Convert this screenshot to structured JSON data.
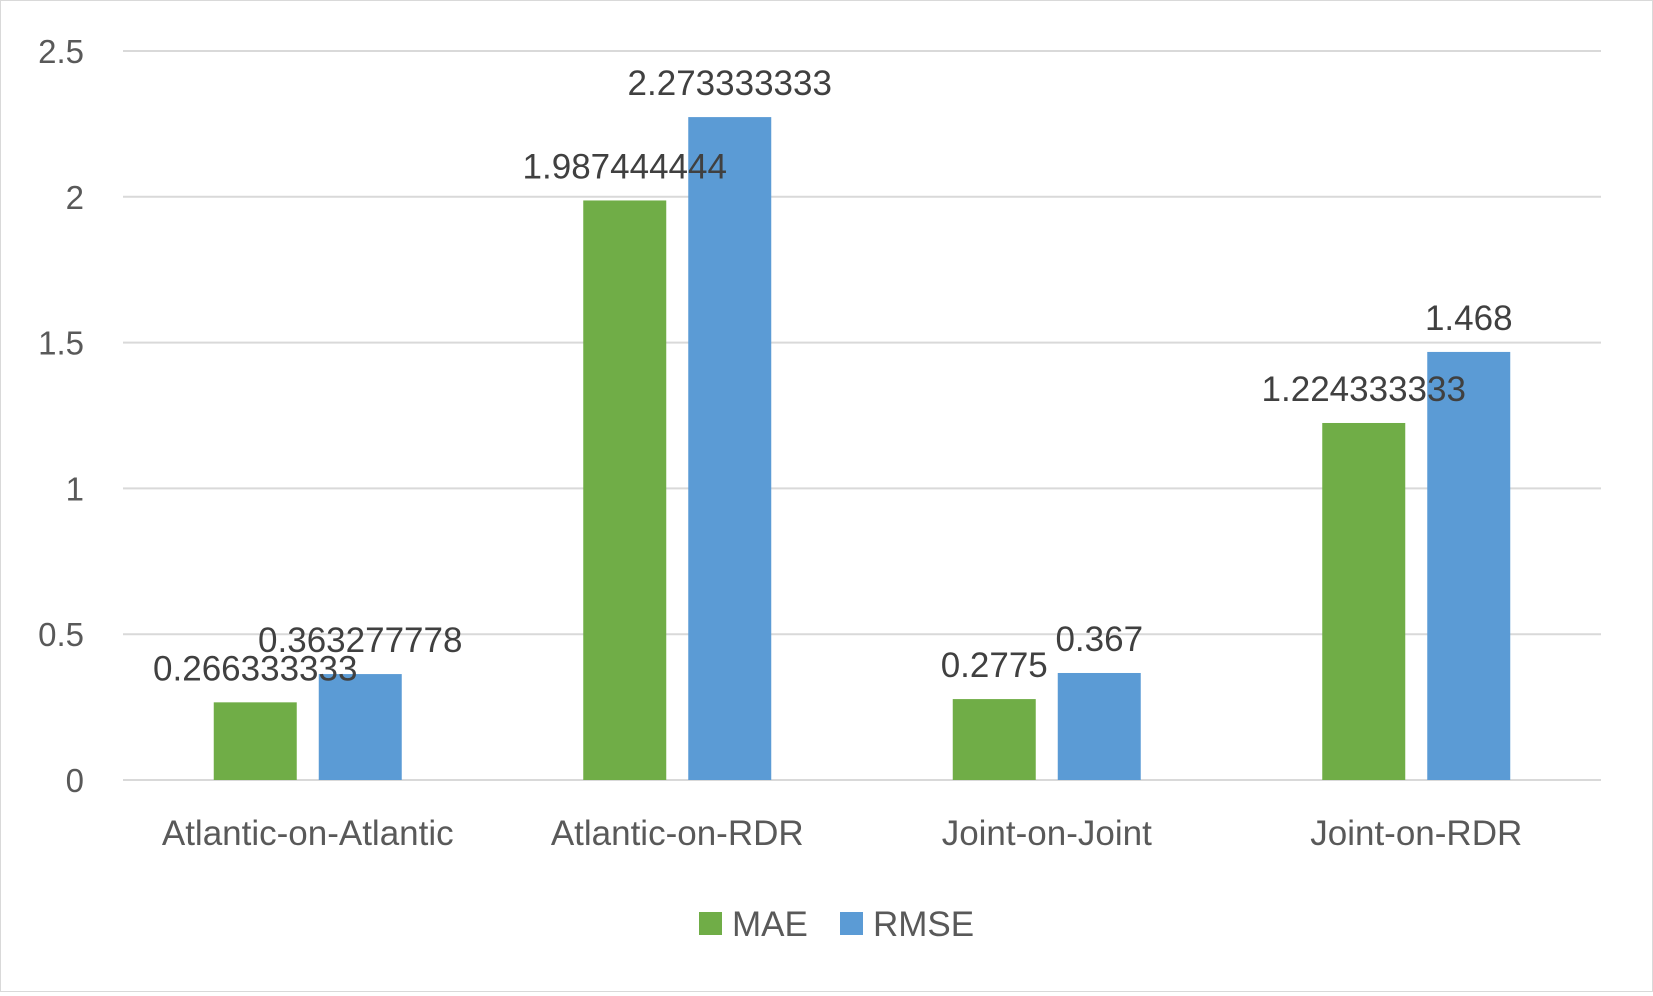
{
  "chart_data": {
    "type": "bar",
    "title": "",
    "xlabel": "",
    "ylabel": "",
    "categories": [
      "Atlantic-on-Atlantic",
      "Atlantic-on-RDR",
      "Joint-on-Joint",
      "Joint-on-RDR"
    ],
    "series": [
      {
        "name": "MAE",
        "color": "#70ad47",
        "values": [
          0.266333333,
          1.987444444,
          0.2775,
          1.224333333
        ],
        "labels": [
          "0.266333333",
          "1.987444444",
          "0.2775",
          "1.224333333"
        ]
      },
      {
        "name": "RMSE",
        "color": "#5b9bd5",
        "values": [
          0.363277778,
          2.273333333,
          0.367,
          1.468
        ],
        "labels": [
          "0.363277778",
          "2.273333333",
          "0.367",
          "1.468"
        ]
      }
    ],
    "ylim": [
      0,
      2.5
    ],
    "yticks": [
      "0",
      "0.5",
      "1",
      "1.5",
      "2",
      "2.5"
    ],
    "grid": true,
    "legend_position": "bottom"
  }
}
